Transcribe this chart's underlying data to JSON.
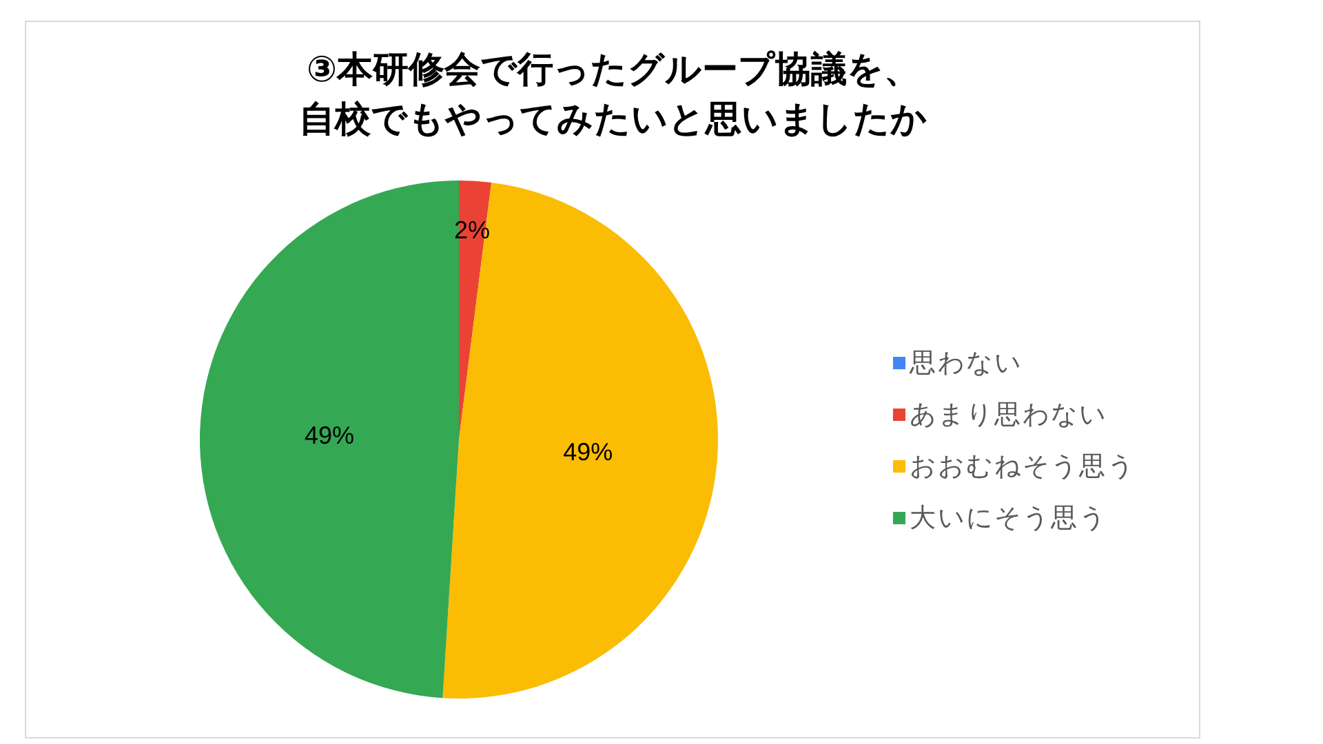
{
  "chart_data": {
    "type": "pie",
    "title": "③本研修会で行ったグループ協議を、自校でもやってみたいと思いましたか",
    "categories": [
      "思わない",
      "あまり思わない",
      "おおむねそう思う",
      "大いにそう思う"
    ],
    "values": [
      0,
      2,
      49,
      49
    ],
    "colors": [
      "#4285f4",
      "#ea4335",
      "#fbbc04",
      "#34a853"
    ],
    "value_labels": [
      null,
      "2%",
      "49%",
      "49%"
    ],
    "legend": "right"
  }
}
